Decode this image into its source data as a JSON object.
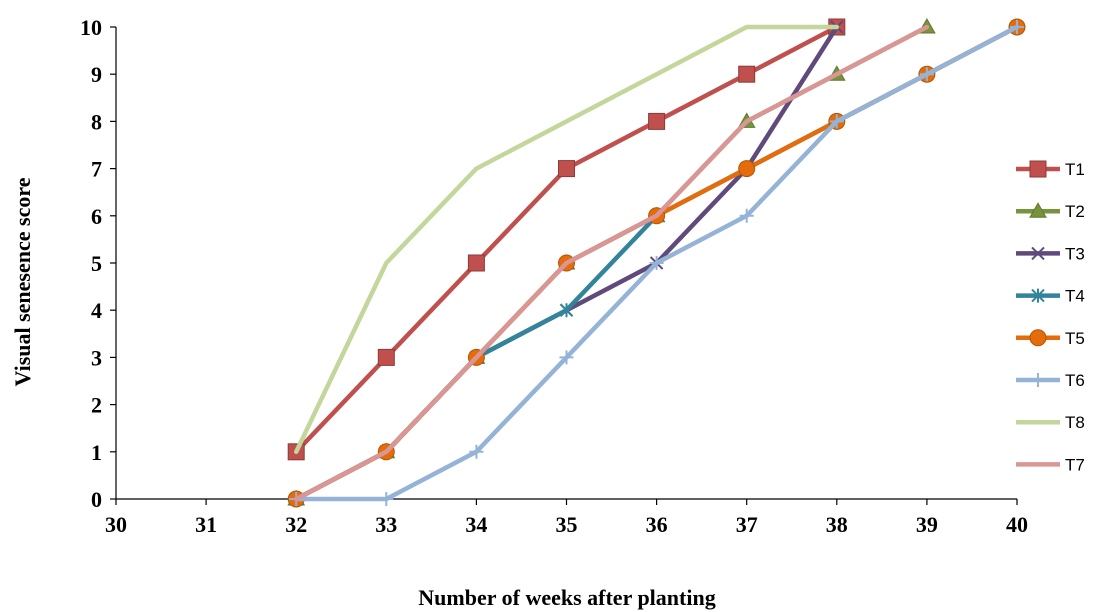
{
  "chart_data": {
    "type": "line",
    "xlabel": "Number of weeks after planting",
    "ylabel": "Visual senesence score",
    "xlim": [
      30,
      40
    ],
    "ylim": [
      0,
      10
    ],
    "xticks": [
      30,
      31,
      32,
      33,
      34,
      35,
      36,
      37,
      38,
      39,
      40
    ],
    "yticks": [
      0,
      1,
      2,
      3,
      4,
      5,
      6,
      7,
      8,
      9,
      10
    ],
    "grid": false,
    "legend_position": "right",
    "series": [
      {
        "name": "T1",
        "color": "#c0504d",
        "marker": "square",
        "x": [
          32,
          33,
          34,
          35,
          36,
          37,
          38
        ],
        "y": [
          1,
          3,
          5,
          7,
          8,
          9,
          10
        ]
      },
      {
        "name": "T2",
        "color": "#77933c",
        "marker": "triangle",
        "x": [
          32,
          33,
          34,
          35,
          36,
          37,
          38,
          39
        ],
        "y": [
          0,
          1,
          3,
          5,
          6,
          8,
          9,
          10
        ]
      },
      {
        "name": "T3",
        "color": "#604a7b",
        "marker": "x",
        "x": [
          32,
          33,
          34,
          35,
          36,
          37,
          38
        ],
        "y": [
          0,
          1,
          3,
          4,
          5,
          7,
          10
        ]
      },
      {
        "name": "T4",
        "color": "#31849b",
        "marker": "star",
        "x": [
          32,
          33,
          34,
          35,
          36,
          37,
          38,
          39,
          40
        ],
        "y": [
          0,
          1,
          3,
          4,
          6,
          7,
          8,
          9,
          10
        ]
      },
      {
        "name": "T5",
        "color": "#e46c0a",
        "marker": "circle",
        "x": [
          32,
          33,
          34,
          35,
          36,
          37,
          38,
          39,
          40
        ],
        "y": [
          0,
          1,
          3,
          5,
          6,
          7,
          8,
          9,
          10
        ]
      },
      {
        "name": "T6",
        "color": "#95b3d7",
        "marker": "plus",
        "x": [
          32,
          33,
          34,
          35,
          36,
          37,
          38,
          39,
          40
        ],
        "y": [
          0,
          0,
          1,
          3,
          5,
          6,
          8,
          9,
          10
        ]
      },
      {
        "name": "T8",
        "color": "#c3d69b",
        "marker": "none",
        "x": [
          32,
          33,
          34,
          35,
          36,
          37,
          38
        ],
        "y": [
          1,
          5,
          7,
          8,
          9,
          10,
          10
        ]
      },
      {
        "name": "T7",
        "color": "#d99694",
        "marker": "none",
        "x": [
          32,
          33,
          34,
          35,
          36,
          37,
          38,
          39
        ],
        "y": [
          0,
          1,
          3,
          5,
          6,
          8,
          9,
          10
        ]
      }
    ]
  }
}
